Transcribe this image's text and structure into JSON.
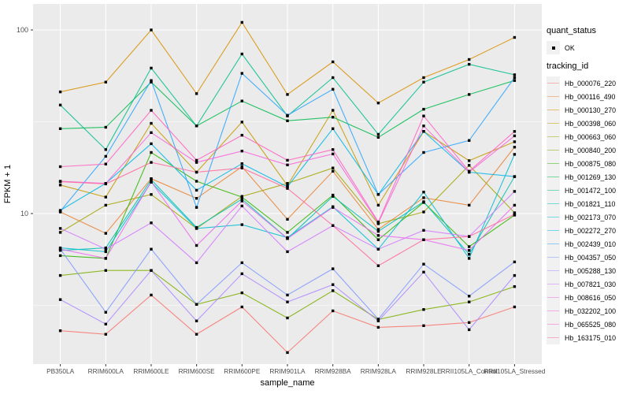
{
  "chart_data": {
    "type": "line",
    "title": "",
    "xlabel": "sample_name",
    "ylabel": "FPKM + 1",
    "y_scale": "log10",
    "y_ticks": [
      10,
      100
    ],
    "y_minor_breaks": [
      3.162,
      31.62
    ],
    "ylim": [
      1.5,
      140
    ],
    "grid": true,
    "legend_position": "right",
    "point_color": "#000000",
    "categories": [
      "PB350LA",
      "RRIM600LA",
      "RRIM600LE",
      "RRIM600SE",
      "RRIM600PE",
      "RRIM901LA",
      "RRIM928BA",
      "RRIM928LA",
      "RRIM928LE",
      "RRII105LA_Control",
      "RRII105LA_Stressed"
    ],
    "series": [
      {
        "name": "Hb_000076_220",
        "color": "#F8766D",
        "values": [
          2.3,
          2.2,
          3.6,
          2.2,
          3.1,
          1.75,
          2.95,
          2.4,
          2.45,
          2.55,
          3.1
        ]
      },
      {
        "name": "Hb_000116_490",
        "color": "#EA8331",
        "values": [
          10.2,
          7.8,
          15.5,
          12.1,
          18,
          9.3,
          17,
          8.2,
          12.2,
          11.1,
          23
        ]
      },
      {
        "name": "Hb_000130_270",
        "color": "#D89000",
        "values": [
          46,
          52,
          100,
          45,
          110,
          44.5,
          67,
          40,
          55,
          69,
          91
        ]
      },
      {
        "name": "Hb_000398_060",
        "color": "#C49A00",
        "values": [
          14.3,
          12.3,
          31,
          16.8,
          31.5,
          14.2,
          36.5,
          11.1,
          28,
          19.4,
          24.6
        ]
      },
      {
        "name": "Hb_000663_060",
        "color": "#A3A500",
        "values": [
          7.9,
          11.1,
          12.7,
          8.3,
          12.4,
          14.6,
          17.7,
          8.8,
          10.2,
          18.3,
          10.1
        ]
      },
      {
        "name": "Hb_000840_200",
        "color": "#7CAE00",
        "values": [
          4.6,
          4.9,
          4.9,
          3.2,
          3.7,
          2.7,
          3.8,
          2.65,
          3.0,
          3.3,
          4.0
        ]
      },
      {
        "name": "Hb_000875_080",
        "color": "#2FB600",
        "values": [
          5.9,
          5.7,
          21.5,
          15.0,
          12.3,
          7.9,
          12.6,
          7.2,
          11.5,
          6.6,
          9.8
        ]
      },
      {
        "name": "Hb_001269_130",
        "color": "#00BB4E",
        "values": [
          29,
          29.5,
          52,
          30,
          41,
          32,
          33.5,
          26,
          37,
          44.5,
          53
        ]
      },
      {
        "name": "Hb_001472_100",
        "color": "#00C08B",
        "values": [
          39,
          22.3,
          62,
          30,
          74,
          34,
          55,
          27,
          52,
          65,
          57
        ]
      },
      {
        "name": "Hb_001821_110",
        "color": "#00C0B4",
        "values": [
          6.3,
          6.5,
          15.3,
          8.4,
          12.0,
          7.3,
          12.4,
          8.0,
          11.6,
          6.0,
          15.9
        ]
      },
      {
        "name": "Hb_002173_070",
        "color": "#00BDD4",
        "values": [
          6.5,
          6.2,
          14.8,
          8.3,
          8.7,
          7.4,
          10.9,
          6.4,
          13.1,
          5.7,
          21
        ]
      },
      {
        "name": "Hb_002272_270",
        "color": "#00B7E8",
        "values": [
          10.4,
          14.6,
          24,
          13.4,
          18.7,
          14,
          29,
          12.7,
          28,
          16.8,
          15.9
        ]
      },
      {
        "name": "Hb_002439_010",
        "color": "#29A3FF",
        "values": [
          10.3,
          20.5,
          53,
          10.8,
          58,
          34.3,
          47.5,
          12.7,
          21.5,
          25,
          55
        ]
      },
      {
        "name": "Hb_004357_050",
        "color": "#7F96FF",
        "values": [
          6.4,
          2.9,
          6.4,
          3.2,
          5.4,
          3.6,
          5.0,
          2.66,
          5.3,
          3.55,
          5.45
        ]
      },
      {
        "name": "Hb_005288_130",
        "color": "#AD87FF",
        "values": [
          3.4,
          2.5,
          4.9,
          2.6,
          4.7,
          3.3,
          4.1,
          2.6,
          4.8,
          2.33,
          4.6
        ]
      },
      {
        "name": "Hb_007821_030",
        "color": "#D277FF",
        "values": [
          8.3,
          6.4,
          8.9,
          5.4,
          11.0,
          6.2,
          8.6,
          6.4,
          8.1,
          7.5,
          13.2
        ]
      },
      {
        "name": "Hb_008616_050",
        "color": "#E96BF0",
        "values": [
          6.4,
          5.7,
          14.9,
          6.7,
          11.7,
          7.3,
          10.8,
          7.6,
          7.2,
          6.3,
          11.1
        ]
      },
      {
        "name": "Hb_032202_100",
        "color": "#F962DD",
        "values": [
          15,
          14.6,
          27.6,
          19,
          21.9,
          18.4,
          21.1,
          8.9,
          30,
          16.8,
          26.5
        ]
      },
      {
        "name": "Hb_065525_080",
        "color": "#FF62C1",
        "values": [
          18,
          18.6,
          36.5,
          19.5,
          26.7,
          19.5,
          22.3,
          9.0,
          34,
          17,
          28
        ]
      },
      {
        "name": "Hb_163175_010",
        "color": "#FF689F",
        "values": [
          14.9,
          14.5,
          19,
          16.8,
          17.7,
          13.7,
          8.6,
          5.2,
          7.2,
          7.5,
          9.9
        ]
      }
    ],
    "legend": {
      "quant_status_title": "quant_status",
      "quant_status_ok": "OK",
      "tracking_title": "tracking_id"
    }
  },
  "colors": {
    "panel_bg": "#EBEBEB",
    "grid": "#FFFFFF",
    "tick_text": "#4D4D4D",
    "axis_title": "#000000",
    "tick_mark": "#333333",
    "legend_key_bg": "#F1F1F1"
  }
}
